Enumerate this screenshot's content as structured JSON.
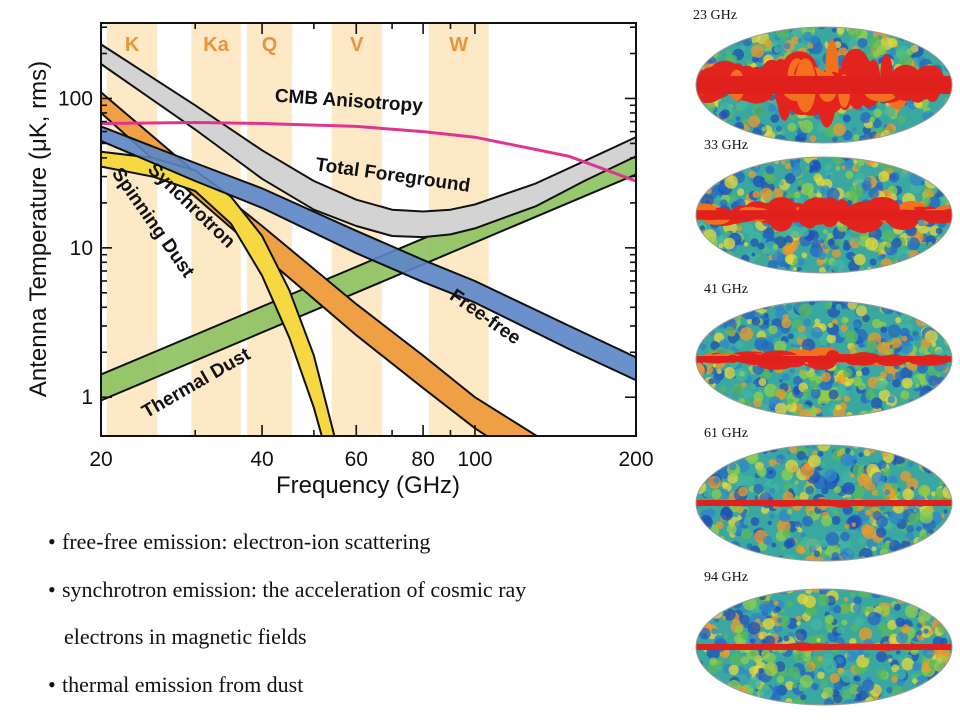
{
  "chart_data": {
    "type": "line",
    "xlabel": "Frequency (GHz)",
    "ylabel": "Antenna Temperature (μK, rms)",
    "xscale": "log",
    "yscale": "log",
    "xlim": [
      20,
      200
    ],
    "ylim": [
      0.55,
      320
    ],
    "x_ticks": [
      20,
      40,
      60,
      80,
      100,
      200
    ],
    "y_ticks": [
      1,
      10,
      100
    ],
    "bands": [
      {
        "name": "K",
        "range": [
          20.5,
          25.5
        ]
      },
      {
        "name": "Ka",
        "range": [
          29.5,
          36.5
        ]
      },
      {
        "name": "Q",
        "range": [
          37.5,
          45.5
        ]
      },
      {
        "name": "V",
        "range": [
          54,
          67
        ]
      },
      {
        "name": "W",
        "range": [
          82,
          106
        ]
      }
    ],
    "series": [
      {
        "name": "Total Foreground",
        "type": "band",
        "color": "#d3d3d3",
        "x": [
          20,
          30,
          40,
          50,
          60,
          70,
          80,
          90,
          100,
          130,
          160,
          200
        ],
        "upper": [
          230,
          90,
          45,
          28,
          21,
          18,
          17.5,
          18,
          19.5,
          27,
          38,
          55
        ],
        "lower": [
          170,
          62,
          29,
          18,
          14,
          12,
          11.8,
          12.3,
          13.5,
          19,
          28,
          41
        ]
      },
      {
        "name": "Synchrotron",
        "type": "band",
        "color": "#f0a044",
        "x": [
          20,
          30,
          40,
          60,
          80,
          100,
          140
        ],
        "upper": [
          110,
          32,
          14,
          4.2,
          1.9,
          1.0,
          0.47
        ],
        "lower": [
          80,
          22,
          9,
          2.6,
          1.15,
          0.62,
          0.28
        ]
      },
      {
        "name": "Free-free",
        "type": "band",
        "color": "#5b85c8",
        "x": [
          20,
          30,
          40,
          60,
          80,
          100,
          150,
          200
        ],
        "upper": [
          65,
          37,
          25,
          13,
          8.3,
          6.0,
          3.0,
          1.85
        ],
        "lower": [
          52,
          28,
          18.5,
          9.2,
          5.9,
          4.3,
          2.1,
          1.3
        ]
      },
      {
        "name": "Spinning Dust",
        "type": "band",
        "color": "#f5d842",
        "x": [
          20,
          25,
          30,
          35,
          40,
          45,
          50,
          55
        ],
        "upper": [
          44,
          40,
          33,
          22,
          12,
          5.2,
          1.9,
          0.5
        ],
        "lower": [
          35,
          30,
          24,
          14.5,
          6.5,
          2.5,
          0.85,
          0.25
        ]
      },
      {
        "name": "Thermal Dust",
        "type": "band",
        "color": "#8cc15e",
        "x": [
          20,
          200
        ],
        "upper": [
          1.42,
          46
        ],
        "lower": [
          0.95,
          31
        ]
      },
      {
        "name": "CMB Anisotropy",
        "type": "line",
        "color": "#e0358e",
        "x": [
          20,
          30,
          40,
          60,
          80,
          100,
          150,
          200
        ],
        "values": [
          68,
          69,
          68,
          65,
          60,
          55,
          41,
          28
        ]
      }
    ]
  },
  "bullets": {
    "b1": "free-free emission: electron-ion scattering",
    "b2": "synchrotron emission: the acceleration of cosmic ray",
    "b3": "electrons in magnetic fields",
    "b4": "thermal emission from dust"
  },
  "bullet_char": "•",
  "sky_maps": [
    {
      "label": "23 GHz",
      "galactic_strength": "very strong"
    },
    {
      "label": "33 GHz",
      "galactic_strength": "strong"
    },
    {
      "label": "41 GHz",
      "galactic_strength": "moderate"
    },
    {
      "label": "61 GHz",
      "galactic_strength": "weak"
    },
    {
      "label": "94 GHz",
      "galactic_strength": "weak"
    }
  ]
}
